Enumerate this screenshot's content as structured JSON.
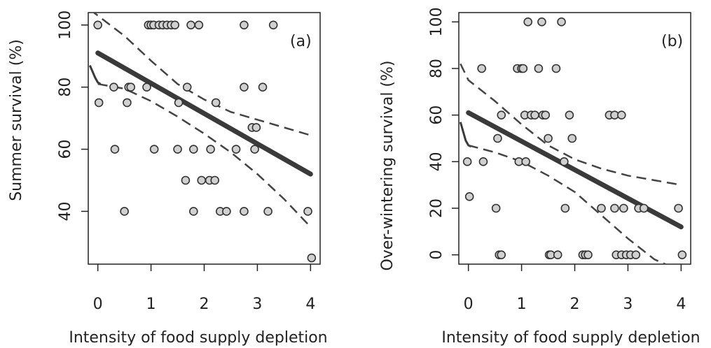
{
  "chart_data": [
    {
      "type": "scatter",
      "panel_label": "(a)",
      "xlabel": "Intensity of food supply depletion",
      "ylabel": "Summer survival (%)",
      "xlim": [
        -0.18,
        4.18
      ],
      "ylim": [
        23,
        104
      ],
      "x_ticks": [
        "0",
        "1",
        "2",
        "3",
        "4"
      ],
      "y_ticks": [
        "40",
        "60",
        "80",
        "100"
      ],
      "points": [
        [
          0,
          100
        ],
        [
          0.02,
          75
        ],
        [
          0.3,
          80
        ],
        [
          0.32,
          60
        ],
        [
          0.5,
          40
        ],
        [
          0.55,
          75
        ],
        [
          0.58,
          80
        ],
        [
          0.62,
          80
        ],
        [
          0.92,
          80
        ],
        [
          0.95,
          100
        ],
        [
          1.0,
          100
        ],
        [
          1.05,
          100
        ],
        [
          1.06,
          60
        ],
        [
          1.15,
          100
        ],
        [
          1.22,
          100
        ],
        [
          1.3,
          100
        ],
        [
          1.38,
          100
        ],
        [
          1.45,
          100
        ],
        [
          1.5,
          60
        ],
        [
          1.52,
          75
        ],
        [
          1.65,
          50
        ],
        [
          1.68,
          80
        ],
        [
          1.75,
          100
        ],
        [
          1.8,
          60
        ],
        [
          1.8,
          40
        ],
        [
          1.9,
          100
        ],
        [
          1.95,
          50
        ],
        [
          2.1,
          50
        ],
        [
          2.12,
          60
        ],
        [
          2.2,
          50
        ],
        [
          2.22,
          75
        ],
        [
          2.3,
          40
        ],
        [
          2.42,
          40
        ],
        [
          2.6,
          60
        ],
        [
          2.75,
          100
        ],
        [
          2.75,
          80
        ],
        [
          2.75,
          40
        ],
        [
          2.9,
          67
        ],
        [
          2.95,
          60
        ],
        [
          2.98,
          67
        ],
        [
          3.1,
          80
        ],
        [
          3.2,
          40
        ],
        [
          3.3,
          100
        ],
        [
          3.95,
          40
        ],
        [
          4.02,
          25
        ]
      ],
      "fit": {
        "x": [
          0,
          4
        ],
        "y": [
          91,
          52
        ]
      },
      "ci_upper": {
        "x": [
          -0.15,
          0.5,
          1.0,
          1.5,
          2.0,
          2.5,
          3.0,
          3.5,
          4.0
        ],
        "y": [
          105,
          96.5,
          88.5,
          81,
          76,
          72,
          69.5,
          67,
          64.5
        ]
      },
      "ci_lower": {
        "x": [
          0,
          0.5,
          1.0,
          1.5,
          2.0,
          2.5,
          3.0,
          3.5,
          4.0
        ],
        "y": [
          81,
          79.5,
          75.5,
          70.5,
          65,
          59,
          52,
          44,
          35
        ]
      },
      "lowess": {
        "x": [
          -0.15,
          -0.1,
          -0.05,
          0,
          0.05
        ],
        "y": [
          87,
          85,
          83,
          81.5,
          81
        ]
      }
    },
    {
      "type": "scatter",
      "panel_label": "(b)",
      "xlabel": "Intensity of food supply depletion",
      "ylabel": "Over-wintering survival (%)",
      "xlim": [
        -0.18,
        4.18
      ],
      "ylim": [
        -4,
        104
      ],
      "x_ticks": [
        "0",
        "1",
        "2",
        "3",
        "4"
      ],
      "y_ticks": [
        "0",
        "20",
        "40",
        "60",
        "80",
        "100"
      ],
      "points": [
        [
          -0.02,
          40
        ],
        [
          0.02,
          25
        ],
        [
          0.25,
          80
        ],
        [
          0.28,
          40
        ],
        [
          0.52,
          20
        ],
        [
          0.55,
          50
        ],
        [
          0.58,
          0
        ],
        [
          0.62,
          0
        ],
        [
          0.62,
          60
        ],
        [
          0.92,
          80
        ],
        [
          0.95,
          40
        ],
        [
          1.0,
          80
        ],
        [
          1.03,
          80
        ],
        [
          1.06,
          60
        ],
        [
          1.08,
          40
        ],
        [
          1.12,
          100
        ],
        [
          1.18,
          60
        ],
        [
          1.25,
          60
        ],
        [
          1.32,
          80
        ],
        [
          1.38,
          100
        ],
        [
          1.4,
          60
        ],
        [
          1.45,
          60
        ],
        [
          1.5,
          50
        ],
        [
          1.52,
          0
        ],
        [
          1.55,
          0
        ],
        [
          1.65,
          80
        ],
        [
          1.68,
          0
        ],
        [
          1.75,
          100
        ],
        [
          1.8,
          40
        ],
        [
          1.82,
          20
        ],
        [
          1.9,
          60
        ],
        [
          1.95,
          50
        ],
        [
          2.15,
          0
        ],
        [
          2.2,
          0
        ],
        [
          2.25,
          0
        ],
        [
          2.5,
          20
        ],
        [
          2.65,
          60
        ],
        [
          2.75,
          60
        ],
        [
          2.75,
          20
        ],
        [
          2.78,
          0
        ],
        [
          2.88,
          60
        ],
        [
          2.88,
          0
        ],
        [
          2.92,
          20
        ],
        [
          2.97,
          0
        ],
        [
          3.05,
          0
        ],
        [
          3.15,
          0
        ],
        [
          3.2,
          20
        ],
        [
          3.3,
          20
        ],
        [
          3.95,
          20
        ],
        [
          4.02,
          0
        ]
      ],
      "fit": {
        "x": [
          0,
          4
        ],
        "y": [
          61,
          12
        ]
      },
      "ci_upper": {
        "x": [
          -0.15,
          0,
          0.5,
          1.0,
          1.5,
          2.0,
          2.5,
          3.0,
          3.5,
          4.0
        ],
        "y": [
          82,
          75,
          66,
          56,
          47,
          41,
          37,
          34,
          32,
          30
        ]
      },
      "ci_lower": {
        "x": [
          0,
          0.5,
          1.0,
          1.5,
          2.0,
          2.5,
          3.0,
          3.5,
          3.8
        ],
        "y": [
          47,
          44,
          40,
          34,
          27,
          17,
          7,
          -2,
          -5
        ]
      },
      "lowess": {
        "x": [
          -0.15,
          -0.1,
          -0.05,
          0,
          0.05
        ],
        "y": [
          57,
          53,
          49,
          47,
          46.5
        ]
      }
    }
  ],
  "colors": {
    "fit": "#3a3a3a",
    "ci": "#444444",
    "point_fill": "#d0d0d0",
    "point_stroke": "#333333",
    "axis": "#222222"
  }
}
